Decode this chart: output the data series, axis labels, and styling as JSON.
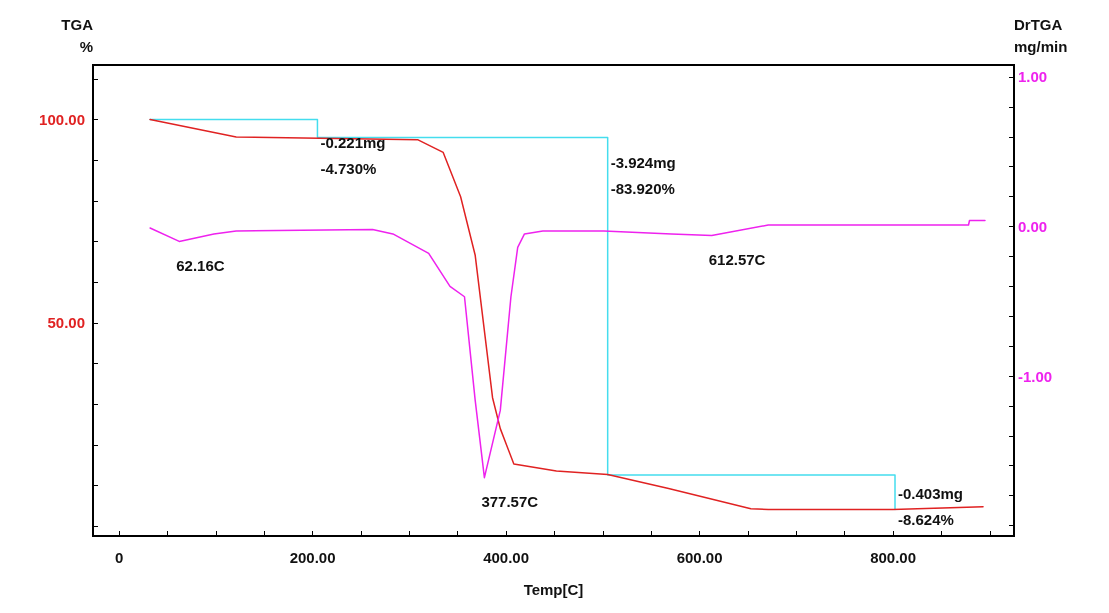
{
  "chart_data": {
    "type": "line",
    "xlabel": "Temp[C]",
    "ylabel": "TGA\n%",
    "y2label": "DrTGA\nmg/min",
    "xlim": [
      -27,
      925
    ],
    "ylim": [
      -2.4,
      113.4
    ],
    "y2lim": [
      -2.07,
      1.08
    ],
    "xticks": [
      {
        "value": 0,
        "label": "0"
      },
      {
        "value": 50,
        "label": null
      },
      {
        "value": 100,
        "label": null
      },
      {
        "value": 150,
        "label": null
      },
      {
        "value": 200,
        "label": "200.00"
      },
      {
        "value": 250,
        "label": null
      },
      {
        "value": 300,
        "label": null
      },
      {
        "value": 350,
        "label": null
      },
      {
        "value": 400,
        "label": "400.00"
      },
      {
        "value": 450,
        "label": null
      },
      {
        "value": 500,
        "label": null
      },
      {
        "value": 550,
        "label": null
      },
      {
        "value": 600,
        "label": "600.00"
      },
      {
        "value": 650,
        "label": null
      },
      {
        "value": 700,
        "label": null
      },
      {
        "value": 750,
        "label": null
      },
      {
        "value": 800,
        "label": "800.00"
      },
      {
        "value": 850,
        "label": null
      },
      {
        "value": 900,
        "label": null
      }
    ],
    "yticks": [
      {
        "value": 0,
        "label": null
      },
      {
        "value": 10,
        "label": null
      },
      {
        "value": 20,
        "label": null
      },
      {
        "value": 30,
        "label": null
      },
      {
        "value": 40,
        "label": null
      },
      {
        "value": 50,
        "label": "50.00"
      },
      {
        "value": 60,
        "label": null
      },
      {
        "value": 70,
        "label": null
      },
      {
        "value": 80,
        "label": null
      },
      {
        "value": 90,
        "label": null
      },
      {
        "value": 100,
        "label": "100.00"
      },
      {
        "value": 110,
        "label": null
      }
    ],
    "y2ticks": [
      {
        "value": -2,
        "label": null
      },
      {
        "value": -1.8,
        "label": null
      },
      {
        "value": -1.6,
        "label": null
      },
      {
        "value": -1.4,
        "label": null
      },
      {
        "value": -1.2,
        "label": null
      },
      {
        "value": -1,
        "label": "-1.00"
      },
      {
        "value": -0.8,
        "label": null
      },
      {
        "value": -0.6,
        "label": null
      },
      {
        "value": -0.4,
        "label": null
      },
      {
        "value": -0.2,
        "label": null
      },
      {
        "value": 0,
        "label": "0.00"
      },
      {
        "value": 0.2,
        "label": null
      },
      {
        "value": 0.4,
        "label": null
      },
      {
        "value": 0.6,
        "label": null
      },
      {
        "value": 0.8,
        "label": null
      },
      {
        "value": 1,
        "label": "1.00"
      }
    ],
    "grid": false,
    "marker": "none",
    "line_style": "solid",
    "series": [
      {
        "color": "#e02222",
        "x": [
          32,
          121,
          309,
          335,
          353,
          368,
          386,
          394,
          408,
          452,
          505,
          568,
          653,
          671,
          800,
          893
        ],
        "values": [
          100,
          95.7,
          95,
          91.9,
          81,
          66.7,
          31.6,
          24,
          15.3,
          13.6,
          12.7,
          9.3,
          4.3,
          4.1,
          4.1,
          4.8
        ]
      },
      {
        "color": "#ee22ee",
        "axis": "y2",
        "x": [
          32,
          62.16,
          98,
          121,
          262,
          283,
          320,
          342,
          357,
          368,
          377.57,
          394,
          405,
          412,
          419,
          438,
          501,
          571,
          612.57,
          671,
          804,
          878,
          879,
          895
        ],
        "values": [
          -0.01,
          -0.1,
          -0.05,
          -0.03,
          -0.02,
          -0.05,
          -0.18,
          -0.4,
          -0.47,
          -1.16,
          -1.68,
          -1.23,
          -0.47,
          -0.14,
          -0.05,
          -0.03,
          -0.03,
          -0.05,
          -0.06,
          0.01,
          0.01,
          0.01,
          0.04,
          0.04
        ]
      },
      {
        "type": "step",
        "color": "#44ddee",
        "x": [
          32,
          205,
          505,
          802
        ],
        "values": [
          100,
          95.6,
          12.6,
          4.1
        ]
      }
    ],
    "annotations": [
      {
        "text": "-0.221mg",
        "x": 205,
        "y": 95.6
      },
      "-4.730%",
      {
        "text": "-3.924mg",
        "x": 505,
        "y": 90.7
      },
      "-83.920%",
      {
        "text": "-0.403mg",
        "x": 802,
        "y": 9.3
      },
      "-8.624%",
      "62.16C",
      "377.57C",
      "612.57C"
    ]
  }
}
